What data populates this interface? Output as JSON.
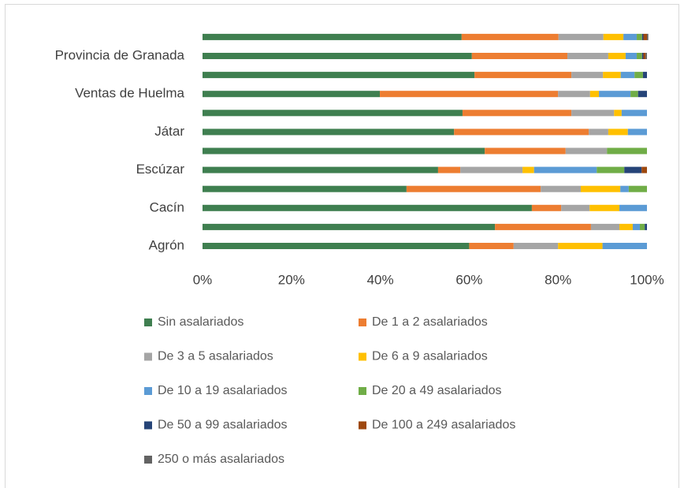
{
  "chart_data": {
    "type": "stacked-bar-horizontal",
    "categories": [
      "Agrón",
      null,
      "Cacín",
      null,
      "Escúzar",
      null,
      "Játar",
      null,
      "Ventas de Huelma",
      null,
      "Provincia de Granada",
      null
    ],
    "series": [
      {
        "name": "Sin asalariados",
        "color": "#3f7f50",
        "values": [
          60,
          65.8,
          74.1,
          45.9,
          53,
          63.5,
          56.6,
          58.5,
          39.9,
          61.2,
          60.6,
          58.3
        ]
      },
      {
        "name": "De 1 a 2 asalariados",
        "color": "#ed7d31",
        "values": [
          10,
          21.6,
          6.6,
          30.2,
          5,
          18.2,
          30.3,
          24.5,
          40.1,
          21.8,
          21.5,
          21.8
        ]
      },
      {
        "name": "De 3 a 5 asalariados",
        "color": "#a5a5a5",
        "values": [
          10,
          6.4,
          6.4,
          9,
          14,
          9.3,
          4.4,
          9.6,
          7.2,
          7.1,
          9.2,
          10.1
        ]
      },
      {
        "name": "De 6 a 9 asalariados",
        "color": "#ffc000",
        "values": [
          10,
          3,
          6.7,
          8.9,
          2.6,
          0,
          4.4,
          1.7,
          2,
          4,
          3.9,
          4.5
        ]
      },
      {
        "name": "De 10 a 19 asalariados",
        "color": "#5b9bd5",
        "values": [
          10,
          1.6,
          6.2,
          1.9,
          14.1,
          0,
          4.3,
          5.7,
          7.1,
          3.1,
          2.5,
          3
        ]
      },
      {
        "name": "De 20 a 49 asalariados",
        "color": "#70ad47",
        "values": [
          0,
          1.1,
          0,
          4.1,
          6.2,
          9,
          0,
          0,
          1.7,
          1.9,
          1.2,
          1.2
        ]
      },
      {
        "name": "De 50 a 99 asalariados",
        "color": "#264478",
        "values": [
          0,
          0.5,
          0,
          0,
          3.9,
          0,
          0,
          0,
          2,
          0.9,
          0.3,
          0.3
        ]
      },
      {
        "name": "De 100 a 249 asalariados",
        "color": "#9e480e",
        "values": [
          0,
          0,
          0,
          0,
          1.2,
          0,
          0,
          0,
          0,
          0,
          0.5,
          0.8
        ]
      },
      {
        "name": "250 o más asalariados",
        "color": "#636363",
        "values": [
          0,
          0,
          0,
          0,
          0,
          0,
          0,
          0,
          0,
          0,
          0.3,
          0.3
        ]
      }
    ],
    "xlim": [
      0,
      100
    ],
    "xticks": [
      {
        "value": 0,
        "label": "0%"
      },
      {
        "value": 20,
        "label": "20%"
      },
      {
        "value": 40,
        "label": "40%"
      },
      {
        "value": 60,
        "label": "60%"
      },
      {
        "value": 80,
        "label": "80%"
      },
      {
        "value": 100,
        "label": "100%"
      }
    ],
    "legend": "bottom"
  }
}
